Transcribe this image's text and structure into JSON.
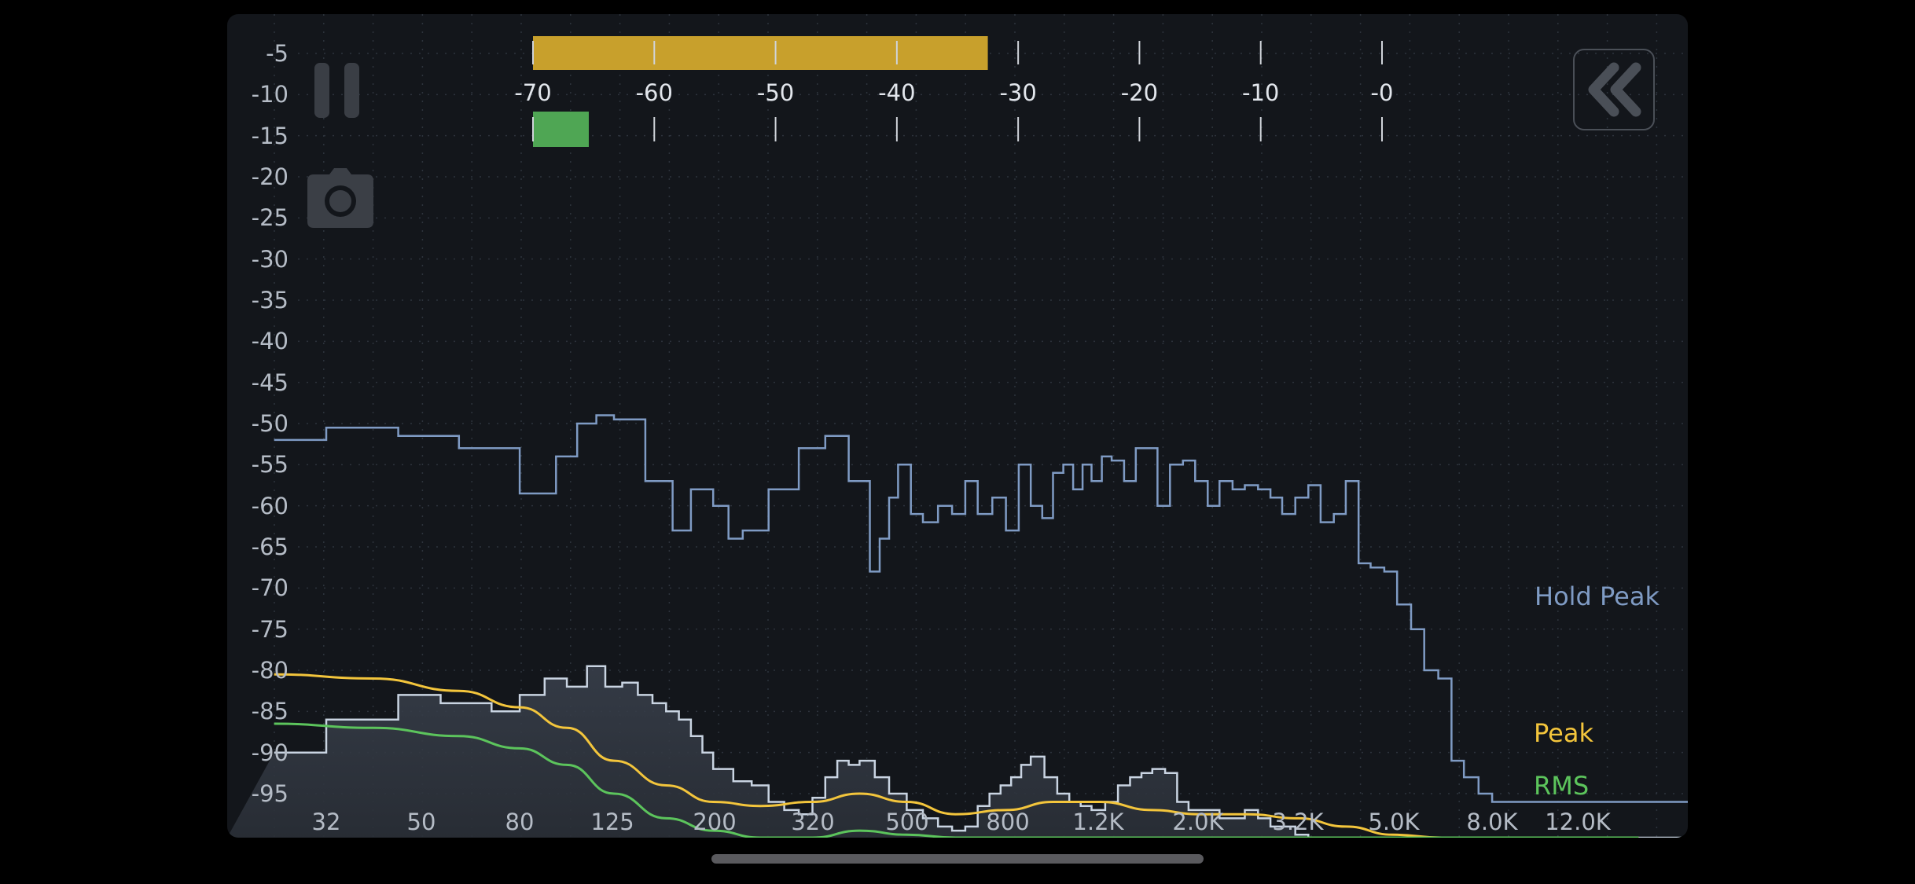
{
  "controls": {
    "pause_icon": "pause-icon",
    "camera_icon": "camera-icon",
    "back_icon": "double-chevron-left-icon"
  },
  "y_axis": {
    "labels": [
      "-5",
      "-10",
      "-15",
      "-20",
      "-25",
      "-30",
      "-35",
      "-40",
      "-45",
      "-50",
      "-55",
      "-60",
      "-65",
      "-70",
      "-75",
      "-80",
      "-85",
      "-90",
      "-95"
    ]
  },
  "x_axis": {
    "labels": [
      "32",
      "50",
      "80",
      "125",
      "200",
      "320",
      "500",
      "800",
      "1.2K",
      "2.0K",
      "3.2K",
      "5.0K",
      "8.0K",
      "12.0K"
    ]
  },
  "level_meter": {
    "scale_labels": [
      "-70",
      "-60",
      "-50",
      "-40",
      "-30",
      "-20",
      "-10",
      "-0"
    ],
    "peak_level": -32.5,
    "rms_level": -65.4,
    "peak_color": "#c8a02c",
    "rms_color": "#4fa654"
  },
  "legend": {
    "hold_peak": "Hold Peak",
    "peak": "Peak",
    "rms": "RMS"
  },
  "colors": {
    "hold_peak": "#7f9bc4",
    "peak": "#f3c53c",
    "rms": "#5cc45c",
    "spectrum_outline": "#c9d4e2"
  },
  "chart_data": {
    "type": "line",
    "xscale": "log",
    "ylim": [
      -100,
      -2
    ],
    "series": [
      {
        "name": "Hold Peak",
        "x": [
          25,
          32,
          45,
          60,
          80,
          95,
          105,
          115,
          125,
          145,
          165,
          180,
          200,
          215,
          230,
          260,
          300,
          340,
          380,
          420,
          440,
          460,
          480,
          510,
          540,
          580,
          620,
          660,
          700,
          750,
          800,
          850,
          900,
          950,
          1000,
          1050,
          1100,
          1150,
          1200,
          1260,
          1320,
          1400,
          1480,
          1560,
          1640,
          1740,
          1850,
          1960,
          2080,
          2200,
          2340,
          2480,
          2640,
          2800,
          2960,
          3150,
          3350,
          3550,
          3780,
          4000,
          4250,
          4500,
          4800,
          5100,
          5450,
          5800,
          6200,
          6600,
          7000,
          7500,
          8000,
          8500,
          9000,
          9500,
          10000,
          11000,
          12000,
          13000,
          14000,
          15000,
          16000
        ],
        "values": [
          -52,
          -50.5,
          -51.5,
          -53,
          -58.5,
          -54,
          -50,
          -49,
          -49.5,
          -57,
          -63,
          -58,
          -60,
          -64,
          -63,
          -58,
          -53,
          -51.5,
          -57,
          -68,
          -64,
          -59,
          -55,
          -61,
          -62,
          -60,
          -61,
          -57,
          -61,
          -59,
          -63,
          -55,
          -60,
          -61.5,
          -56,
          -55,
          -58,
          -55,
          -57,
          -54,
          -54.5,
          -57,
          -53,
          -53,
          -60,
          -55,
          -54.5,
          -57,
          -60,
          -57,
          -58,
          -57.5,
          -58,
          -59,
          -61,
          -59,
          -57.5,
          -62,
          -61,
          -57,
          -67,
          -67.5,
          -68,
          -72,
          -75,
          -80,
          -81,
          -91,
          -93,
          -95,
          -96,
          -96,
          -96,
          -96,
          -96,
          -96,
          -96,
          -96,
          -96,
          -96,
          -96
        ],
        "style": "step"
      },
      {
        "name": "Peak",
        "x": [
          25,
          40,
          60,
          80,
          100,
          125,
          160,
          200,
          250,
          320,
          400,
          500,
          630,
          800,
          1000,
          1250,
          1600,
          2000,
          2500,
          3200,
          4000,
          5000,
          6300,
          8000,
          10000,
          12500,
          16000
        ],
        "values": [
          -80.5,
          -81,
          -82.5,
          -84.5,
          -87,
          -91,
          -94,
          -96,
          -96.5,
          -96,
          -95,
          -96,
          -97.5,
          -97,
          -96,
          -96,
          -97,
          -97.5,
          -97.5,
          -98,
          -99,
          -100,
          -101,
          -101.5,
          -101.5,
          -101.5,
          -101.5
        ]
      },
      {
        "name": "RMS",
        "x": [
          25,
          40,
          60,
          80,
          100,
          125,
          160,
          200,
          250,
          320,
          400,
          500,
          630,
          800,
          1000,
          1250,
          1600,
          2000,
          2500,
          3200,
          4000,
          5000,
          6300,
          8000,
          10000,
          12500,
          16000
        ],
        "values": [
          -86.5,
          -87,
          -88,
          -89.5,
          -91.5,
          -95,
          -98,
          -99.5,
          -100.5,
          -100.5,
          -99.5,
          -100,
          -101,
          -101,
          -100.5,
          -100.5,
          -101,
          -101,
          -101,
          -101.5,
          -102,
          -102,
          -102,
          -102,
          -102,
          -102,
          -102
        ]
      },
      {
        "name": "Spectrum",
        "x": [
          25,
          32,
          45,
          55,
          70,
          80,
          90,
          100,
          110,
          120,
          130,
          140,
          150,
          160,
          170,
          180,
          190,
          200,
          220,
          240,
          260,
          280,
          300,
          320,
          340,
          360,
          380,
          400,
          430,
          460,
          500,
          540,
          580,
          620,
          660,
          700,
          740,
          780,
          820,
          860,
          900,
          960,
          1020,
          1080,
          1140,
          1200,
          1280,
          1360,
          1440,
          1520,
          1600,
          1700,
          1800,
          1900,
          2000,
          2100,
          2200,
          2340,
          2480,
          2640,
          2800,
          2960,
          3150,
          3350,
          3550,
          3780,
          4000,
          4250,
          4500,
          4800,
          5100,
          5450,
          5800,
          6200,
          6600,
          7000,
          8000,
          9000,
          10000,
          11000,
          12000,
          14000,
          16000
        ],
        "values": [
          -90,
          -86,
          -83,
          -84,
          -85,
          -83,
          -81,
          -82,
          -79.5,
          -82,
          -81.5,
          -83,
          -84,
          -85,
          -86,
          -88,
          -90,
          -92,
          -93.5,
          -94,
          -96,
          -97,
          -97.5,
          -95.5,
          -93,
          -91,
          -91.5,
          -91,
          -93,
          -95,
          -97,
          -98,
          -99,
          -99.5,
          -99,
          -96.5,
          -95,
          -94,
          -93,
          -91.5,
          -90.5,
          -93,
          -95,
          -96,
          -96.5,
          -97,
          -96,
          -94,
          -93,
          -92.5,
          -92,
          -92.5,
          -96,
          -97,
          -97,
          -97,
          -98,
          -98,
          -97,
          -98,
          -99,
          -99,
          -100,
          -101,
          -102,
          -102,
          -102,
          -102,
          -102,
          -102,
          -102,
          -102,
          -102,
          -102,
          -102,
          -102,
          -102,
          -102,
          -102,
          -102,
          -102,
          -102,
          -102
        ],
        "style": "step"
      }
    ]
  }
}
